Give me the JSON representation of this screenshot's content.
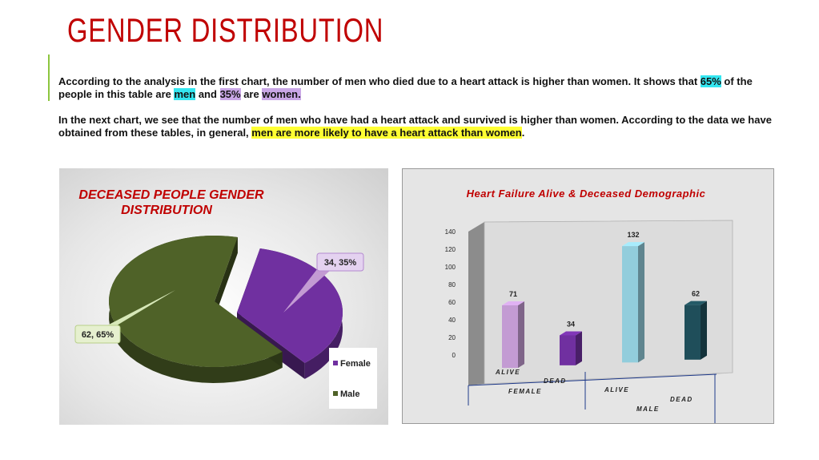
{
  "page": {
    "title": "GENDER DISTRIBUTION",
    "paragraph1": {
      "t1": "According to the analysis in the first chart, the number of men who died due to a heart attack is higher than women. It shows that ",
      "h1": "65%",
      "t2": " of the people in this table are ",
      "h2": "men",
      "t3": " and ",
      "h3": "35%",
      "t4": " are ",
      "h4": "women."
    },
    "paragraph2": {
      "t1": "In the next chart, we see that the number of men who have had a heart attack and survived is higher than women. According to the data we have obtained from these tables, in general, ",
      "h1": "men are more likely to have a heart attack than women",
      "t2": "."
    }
  },
  "chart_data": [
    {
      "type": "pie",
      "title_line1": "DECEASED PEOPLE GENDER",
      "title_line2": "DISTRIBUTION",
      "slices": [
        {
          "name": "Female",
          "value": 34,
          "percent": 35,
          "label": "34, 35%",
          "color": "#7030a0"
        },
        {
          "name": "Male",
          "value": 62,
          "percent": 65,
          "label": "62, 65%",
          "color": "#4f6228"
        }
      ],
      "legend": [
        "Female",
        "Male"
      ],
      "legend_position": "bottom-right",
      "style": "3d-exploded"
    },
    {
      "type": "bar",
      "title": "Heart Failure Alive & Deceased Demographic",
      "groups": [
        "FEMALE",
        "MALE"
      ],
      "categories": [
        "ALIVE",
        "DEAD",
        "ALIVE",
        "DEAD"
      ],
      "values": [
        71,
        34,
        132,
        62
      ],
      "colors": [
        "#c39bd3",
        "#7030a0",
        "#92cddc",
        "#1f4e5a"
      ],
      "ylim": [
        0,
        140
      ],
      "yticks": [
        "0",
        "20",
        "40",
        "60",
        "80",
        "100",
        "120",
        "140"
      ],
      "style": "3d-column"
    }
  ]
}
